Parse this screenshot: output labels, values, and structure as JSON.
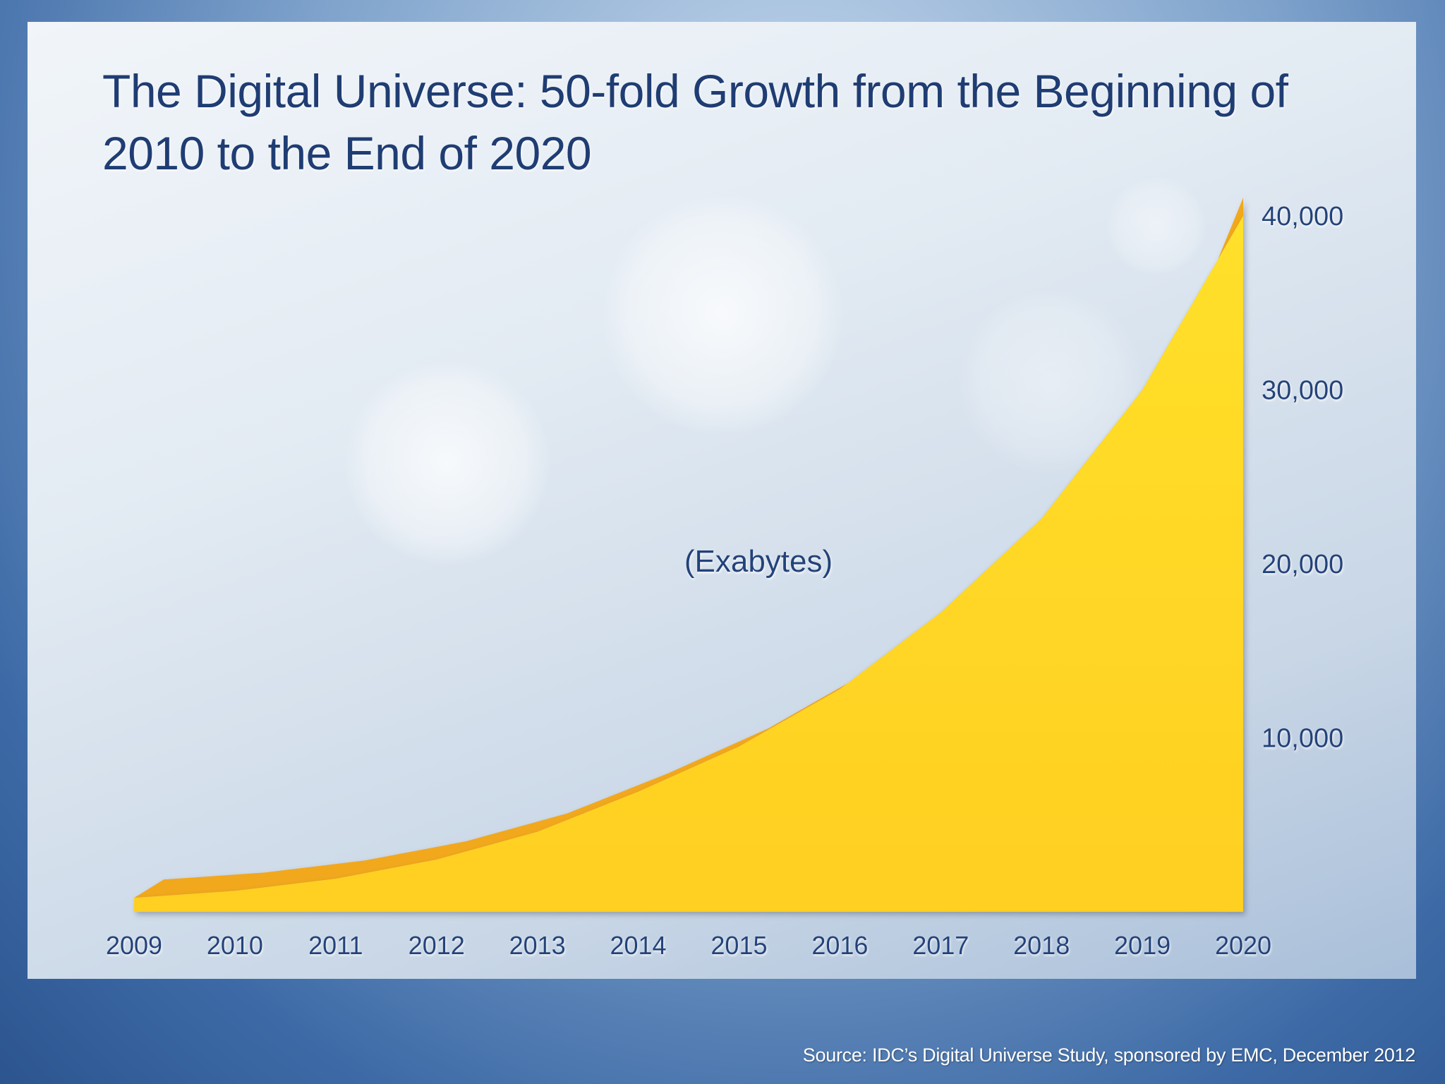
{
  "colors": {
    "title": "#1f3d73",
    "axis_text": "#23427a",
    "area_fill": "#ffd21f",
    "area_edge": "#f2a81d",
    "source_text": "#ffffff"
  },
  "source": "Source: IDC’s Digital Universe Study, sponsored by EMC, December 2012",
  "chart_data": {
    "type": "area",
    "title": "The Digital Universe: 50-fold Growth from the Beginning of 2010 to the End of 2020",
    "unit_label": "(Exabytes)",
    "x": [
      2009,
      2010,
      2011,
      2012,
      2013,
      2014,
      2015,
      2016,
      2017,
      2018,
      2019,
      2020
    ],
    "x_tick_labels": [
      "2009",
      "2010",
      "2011",
      "2012",
      "2013",
      "2014",
      "2015",
      "2016",
      "2017",
      "2018",
      "2019",
      "2020"
    ],
    "values": [
      800,
      1200,
      1900,
      3000,
      4600,
      6900,
      9500,
      12800,
      17200,
      22600,
      30000,
      40000
    ],
    "y_ticks": [
      10000,
      20000,
      30000,
      40000
    ],
    "y_tick_labels": [
      "10,000",
      "20,000",
      "30,000",
      "40,000"
    ],
    "ylim": [
      0,
      40000
    ],
    "y_axis_position": "right",
    "grid": false,
    "legend": "none"
  }
}
